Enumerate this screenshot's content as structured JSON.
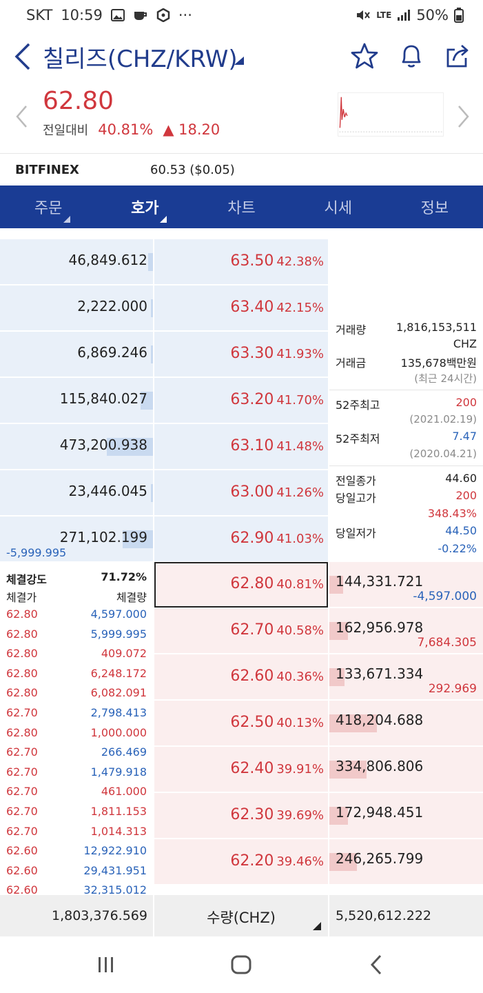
{
  "status_bar": {
    "carrier": "SKT",
    "time": "10:59",
    "network": "LTE",
    "battery": "50%"
  },
  "header": {
    "title": "칠리즈(CHZ/KRW)"
  },
  "price": {
    "current": "62.80",
    "change_label": "전일대비",
    "change_pct": "40.81%",
    "change_abs": "▲ 18.20"
  },
  "exchange": {
    "name": "BITFINEX",
    "price": "60.53 ($0.05)"
  },
  "tabs": [
    {
      "label": "주문",
      "active": false
    },
    {
      "label": "호가",
      "active": true
    },
    {
      "label": "차트",
      "active": false
    },
    {
      "label": "시세",
      "active": false
    },
    {
      "label": "정보",
      "active": false
    }
  ],
  "asks": [
    {
      "qty": "46,849.612",
      "bar": 0.03,
      "price": "63.50",
      "pct": "42.38%"
    },
    {
      "qty": "2,222.000",
      "bar": 0.0,
      "price": "63.40",
      "pct": "42.15%"
    },
    {
      "qty": "6,869.246",
      "bar": 0.01,
      "price": "63.30",
      "pct": "41.93%"
    },
    {
      "qty": "115,840.027",
      "bar": 0.08,
      "price": "63.20",
      "pct": "41.70%"
    },
    {
      "qty": "473,200.938",
      "bar": 0.3,
      "price": "63.10",
      "pct": "41.48%"
    },
    {
      "qty": "23,446.045",
      "bar": 0.01,
      "price": "63.00",
      "pct": "41.26%"
    },
    {
      "qty": "271,102.199",
      "bar": 0.2,
      "price": "62.90",
      "pct": "41.03%"
    }
  ],
  "ask_change": "-5,999.995",
  "bids": [
    {
      "price": "62.80",
      "pct": "40.81%",
      "qty": "144,331.721",
      "change": "-4,597.000",
      "change_color": "blue",
      "bar": 0.09
    },
    {
      "price": "62.70",
      "pct": "40.58%",
      "qty": "162,956.978",
      "change": "7,684.305",
      "change_color": "red",
      "bar": 0.12
    },
    {
      "price": "62.60",
      "pct": "40.36%",
      "qty": "133,671.334",
      "change": "292.969",
      "change_color": "red",
      "bar": 0.1
    },
    {
      "price": "62.50",
      "pct": "40.13%",
      "qty": "418,204.688",
      "change": "",
      "change_color": "red",
      "bar": 0.31
    },
    {
      "price": "62.40",
      "pct": "39.91%",
      "qty": "334,806.806",
      "change": "",
      "change_color": "red",
      "bar": 0.24
    },
    {
      "price": "62.30",
      "pct": "39.69%",
      "qty": "172,948.451",
      "change": "",
      "change_color": "red",
      "bar": 0.12
    },
    {
      "price": "62.20",
      "pct": "39.46%",
      "qty": "246,265.799",
      "change": "",
      "change_color": "red",
      "bar": 0.18
    }
  ],
  "info": {
    "volume_label": "거래량",
    "volume": "1,816,153,511",
    "volume_unit": "CHZ",
    "amount_label": "거래금",
    "amount": "135,678백만원",
    "amount_note": "(최근 24시간)",
    "high52_label": "52주최고",
    "high52": "200",
    "high52_date": "(2021.02.19)",
    "low52_label": "52주최저",
    "low52": "7.47",
    "low52_date": "(2020.04.21)",
    "prev_close_label": "전일종가",
    "prev_close": "44.60",
    "day_high_label": "당일고가",
    "day_high": "200",
    "day_high_pct": "348.43%",
    "day_low_label": "당일저가",
    "day_low": "44.50",
    "day_low_pct": "-0.22%"
  },
  "trades": {
    "strength_label": "체결강도",
    "strength": "71.72%",
    "price_header": "체결가",
    "volume_header": "체결량",
    "rows": [
      {
        "price": "62.80",
        "vol": "4,597.000",
        "color": "blue"
      },
      {
        "price": "62.80",
        "vol": "5,999.995",
        "color": "blue"
      },
      {
        "price": "62.80",
        "vol": "409.072",
        "color": "red"
      },
      {
        "price": "62.80",
        "vol": "6,248.172",
        "color": "red"
      },
      {
        "price": "62.80",
        "vol": "6,082.091",
        "color": "red"
      },
      {
        "price": "62.70",
        "vol": "2,798.413",
        "color": "blue"
      },
      {
        "price": "62.80",
        "vol": "1,000.000",
        "color": "red"
      },
      {
        "price": "62.70",
        "vol": "266.469",
        "color": "blue"
      },
      {
        "price": "62.70",
        "vol": "1,479.918",
        "color": "blue"
      },
      {
        "price": "62.70",
        "vol": "461.000",
        "color": "red"
      },
      {
        "price": "62.70",
        "vol": "1,811.153",
        "color": "red"
      },
      {
        "price": "62.70",
        "vol": "1,014.313",
        "color": "red"
      },
      {
        "price": "62.60",
        "vol": "12,922.910",
        "color": "blue"
      },
      {
        "price": "62.60",
        "vol": "29,431.951",
        "color": "blue"
      },
      {
        "price": "62.60",
        "vol": "32,315.012",
        "color": "blue"
      }
    ]
  },
  "totals": {
    "ask_total": "1,803,376.569",
    "unit": "수량(CHZ)",
    "bid_total": "5,520,612.222"
  },
  "colors": {
    "navy": "#1a3c94",
    "up_red": "#d0373d",
    "down_blue": "#2a63b9",
    "ask_bg": "#e9f0f9",
    "bid_bg": "#fbeeee"
  }
}
